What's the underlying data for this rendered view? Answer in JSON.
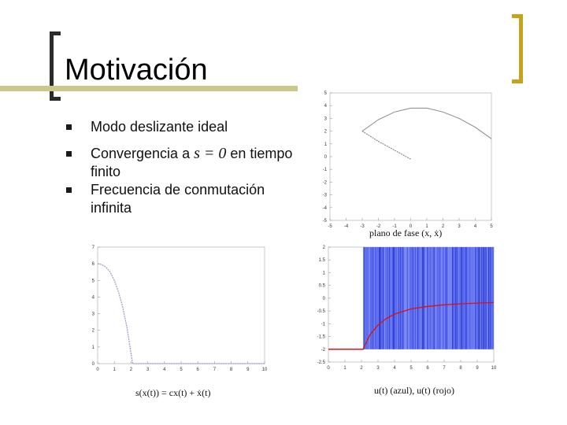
{
  "slide": {
    "title": "Motivación",
    "bullets": [
      {
        "pre": "Convergencia a ",
        "math": "s = 0",
        "post": " en tiempo finito"
      },
      {
        "text": "Modo deslizante ideal"
      },
      {
        "text": "Frecuencia de conmutación infinita"
      }
    ]
  },
  "captions": {
    "phase": "plano de fase (x, ẋ)",
    "sliding": "s(x(t)) = cx(t) + ẋ(t)",
    "control": "u(t) (azul), u(t) (rojo)"
  },
  "colors": {
    "accent_gold": "#c8a21a",
    "bracket_dark": "#2b2b2b",
    "title_bar": "#c9c98a",
    "blue": "#3344ee",
    "red": "#dd1111"
  },
  "chart_data": [
    {
      "type": "line",
      "title": "",
      "xlabel": "plano de fase (x, ẋ)",
      "xlim": [
        -5,
        5
      ],
      "ylim": [
        -5,
        5
      ],
      "xticks": [
        "-5",
        "-4",
        "-3",
        "-2",
        "-1",
        "0",
        "1",
        "2",
        "3",
        "4",
        "5"
      ],
      "yticks": [
        "5",
        "4",
        "3",
        "2",
        "1",
        "0",
        "-1",
        "-2",
        "-3",
        "-4",
        "-5"
      ],
      "series": [
        {
          "x": [
            -3.0,
            -2.0,
            -1.0,
            0.0,
            1.0,
            2.0,
            3.0,
            4.0,
            5.0
          ],
          "y": [
            2.0,
            2.9,
            3.5,
            3.8,
            3.8,
            3.5,
            3.0,
            2.3,
            1.4
          ]
        },
        {
          "x": [
            -3.0,
            -2.0,
            -1.0,
            0.0
          ],
          "y": [
            2.0,
            1.2,
            0.5,
            -0.2
          ]
        }
      ]
    },
    {
      "type": "line",
      "title": "",
      "xlabel": "s(x(t)) = cx(t) + ẋ(t)",
      "xlim": [
        0,
        10
      ],
      "ylim": [
        0,
        7
      ],
      "xticks": [
        "0",
        "1",
        "2",
        "3",
        "4",
        "5",
        "6",
        "7",
        "8",
        "9",
        "10"
      ],
      "yticks": [
        "7",
        "6",
        "5",
        "4",
        "3",
        "2",
        "1",
        "0"
      ],
      "series": [
        {
          "x": [
            0,
            0.25,
            0.5,
            0.75,
            1.0,
            1.25,
            1.5,
            1.75,
            2.0,
            2.1,
            10
          ],
          "y": [
            6.0,
            5.95,
            5.8,
            5.5,
            5.0,
            4.3,
            3.4,
            2.2,
            0.6,
            0.0,
            0.0
          ]
        }
      ]
    },
    {
      "type": "line",
      "title": "",
      "xlabel": "u(t) (azul), u(t) (rojo)",
      "xlim": [
        0,
        10
      ],
      "ylim": [
        -2.5,
        2
      ],
      "xticks": [
        "0",
        "1",
        "2",
        "3",
        "4",
        "5",
        "6",
        "7",
        "8",
        "9",
        "10"
      ],
      "yticks": [
        "2",
        "1.5",
        "1",
        "0.5",
        "0",
        "-0.5",
        "-1",
        "-1.5",
        "-2",
        "-2.5"
      ],
      "band": {
        "x_start": 2.1,
        "x_end": 10,
        "y_low": -2,
        "y_high": 2
      },
      "series": [
        {
          "name": "",
          "x": [
            0,
            2.1,
            2.5,
            3.0,
            3.5,
            4.0,
            5.0,
            6.0,
            7.0,
            8.0,
            9.0,
            10.0
          ],
          "y": [
            -2.0,
            -2.0,
            -1.45,
            -1.05,
            -0.8,
            -0.62,
            -0.42,
            -0.32,
            -0.26,
            -0.22,
            -0.19,
            -0.17
          ]
        }
      ]
    }
  ]
}
